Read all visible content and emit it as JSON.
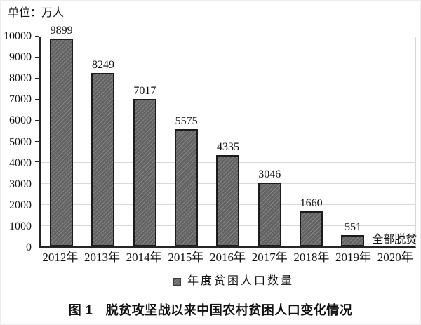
{
  "unit_label": "单位：万人",
  "legend": {
    "label": "年度贫困人口数量"
  },
  "caption": "图 1　脱贫攻坚战以来中国农村贫困人口变化情况",
  "chart_data": {
    "type": "bar",
    "title": "图 1 脱贫攻坚战以来中国农村贫困人口变化情况",
    "unit_label": "单位：万人",
    "ylabel": "万人",
    "xlabel": "",
    "categories": [
      "2012年",
      "2013年",
      "2014年",
      "2015年",
      "2016年",
      "2017年",
      "2018年",
      "2019年",
      "2020年"
    ],
    "values": [
      9899,
      8249,
      7017,
      5575,
      4335,
      3046,
      1660,
      551,
      null
    ],
    "value_labels": [
      "9899",
      "8249",
      "7017",
      "5575",
      "4335",
      "3046",
      "1660",
      "551",
      "全部脱贫"
    ],
    "annotation_2020": "全部脱贫",
    "ylim": [
      0,
      10000
    ],
    "ytick_step": 1000,
    "grid": true,
    "legend_position": "bottom",
    "legend_entries": [
      "年度贫困人口数量"
    ],
    "colors": {
      "bar_fill": "#636363",
      "bar_stripe": "rgba(255,255,255,0.22)",
      "bar_border": "#1c1c1c",
      "gridline": "#d9d9d9",
      "axis": "#262626"
    }
  }
}
